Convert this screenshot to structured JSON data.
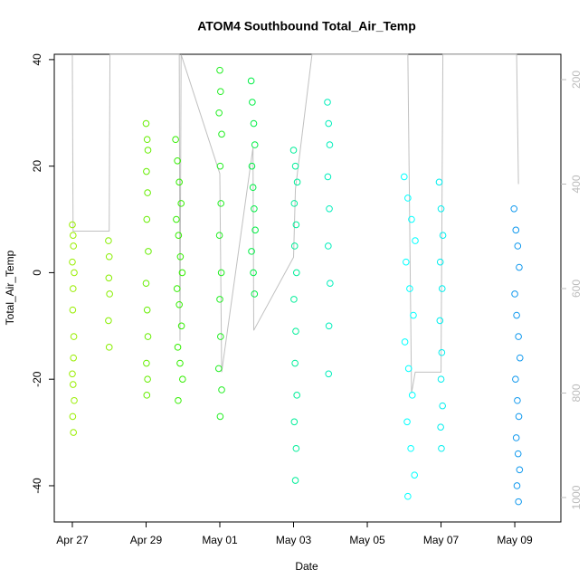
{
  "chart_data": {
    "type": "scatter",
    "title": "ATOM4 Southbound Total_Air_Temp",
    "xlabel": "Date",
    "ylabel": "Total_Air_Temp",
    "xlim": [
      -0.49,
      13.25
    ],
    "ylim": [
      -46.8,
      41
    ],
    "xticks": [
      {
        "value": 0,
        "label": "Apr 27"
      },
      {
        "value": 2,
        "label": "Apr 29"
      },
      {
        "value": 4,
        "label": "May 01"
      },
      {
        "value": 6,
        "label": "May 03"
      },
      {
        "value": 8,
        "label": "May 05"
      },
      {
        "value": 10,
        "label": "May 07"
      },
      {
        "value": 12,
        "label": "May 09"
      }
    ],
    "yticks": [
      -40,
      -20,
      0,
      20,
      40
    ],
    "y2lim": [
      1046.8,
      151.5
    ],
    "y2ticks": [
      200,
      400,
      600,
      800,
      1000
    ],
    "series": [
      {
        "color": "#99ee00",
        "x": [
          0.0,
          0.02,
          0.03,
          0.0,
          0.05,
          0.02,
          0.01,
          0.04,
          0.03,
          0.0,
          0.02,
          0.05,
          0.01,
          0.03
        ],
        "values": [
          9,
          7,
          5,
          2,
          0,
          -3,
          -7,
          -12,
          -16,
          -19,
          -21,
          -24,
          -27,
          -30
        ]
      },
      {
        "color": "#88ee00",
        "x": [
          0.98,
          1.0,
          0.99,
          1.01,
          0.98,
          1.0
        ],
        "values": [
          6,
          3,
          -1,
          -4,
          -9,
          -14
        ]
      },
      {
        "color": "#66ee00",
        "x": [
          2.0,
          2.03,
          2.05,
          2.01,
          2.04,
          2.02,
          2.06,
          2.0,
          2.03,
          2.05,
          2.01,
          2.04,
          2.02
        ],
        "values": [
          28,
          25,
          23,
          19,
          15,
          10,
          4,
          -2,
          -7,
          -12,
          -17,
          -20,
          -23
        ]
      },
      {
        "color": "#33ee00",
        "x": [
          2.8,
          2.85,
          2.9,
          2.95,
          2.82,
          2.88,
          2.93,
          2.98,
          2.84,
          2.9,
          2.96,
          2.86,
          2.92,
          2.99,
          2.87
        ],
        "values": [
          25,
          21,
          17,
          13,
          10,
          7,
          3,
          0,
          -3,
          -6,
          -10,
          -14,
          -17,
          -20,
          -24
        ]
      },
      {
        "color": "#22ee22",
        "x": [
          4.0,
          4.02,
          3.98,
          4.05,
          4.01,
          4.03,
          3.99,
          4.04,
          4.0,
          4.02,
          3.97,
          4.05,
          4.01
        ],
        "values": [
          38,
          34,
          30,
          26,
          20,
          13,
          7,
          0,
          -5,
          -12,
          -18,
          -22,
          -27
        ]
      },
      {
        "color": "#00ee44",
        "x": [
          4.85,
          4.88,
          4.92,
          4.95,
          4.87,
          4.9,
          4.93,
          4.96,
          4.86,
          4.91,
          4.94
        ],
        "values": [
          36,
          32,
          28,
          24,
          20,
          16,
          12,
          8,
          4,
          0,
          -4
        ]
      },
      {
        "color": "#00ee99",
        "x": [
          6.0,
          6.05,
          6.1,
          6.02,
          6.07,
          6.03,
          6.08,
          6.01,
          6.06,
          6.04,
          6.09,
          6.02,
          6.07,
          6.05
        ],
        "values": [
          23,
          20,
          17,
          13,
          9,
          5,
          0,
          -5,
          -11,
          -17,
          -23,
          -28,
          -33,
          -39
        ]
      },
      {
        "color": "#00eebb",
        "x": [
          6.92,
          6.95,
          6.98,
          6.93,
          6.97,
          6.94,
          6.99,
          6.96,
          6.95
        ],
        "values": [
          32,
          28,
          24,
          18,
          12,
          5,
          -2,
          -10,
          -19
        ]
      },
      {
        "color": "#00ffff",
        "x": [
          9.0,
          9.1,
          9.2,
          9.3,
          9.05,
          9.15,
          9.25,
          9.02,
          9.12,
          9.22,
          9.08,
          9.18,
          9.28,
          9.1
        ],
        "values": [
          18,
          14,
          10,
          6,
          2,
          -3,
          -8,
          -13,
          -18,
          -23,
          -28,
          -33,
          -38,
          -42
        ]
      },
      {
        "color": "#00eeee",
        "x": [
          9.95,
          10.0,
          10.05,
          9.98,
          10.03,
          9.97,
          10.02,
          10.0,
          10.04,
          9.99,
          10.01
        ],
        "values": [
          17,
          12,
          7,
          2,
          -3,
          -9,
          -15,
          -20,
          -25,
          -29,
          -33
        ]
      },
      {
        "color": "#1199ee",
        "x": [
          11.98,
          12.03,
          12.08,
          12.12,
          12.0,
          12.05,
          12.1,
          12.14,
          12.02,
          12.07,
          12.11,
          12.04,
          12.09,
          12.13,
          12.06,
          12.1
        ],
        "values": [
          12,
          8,
          5,
          1,
          -4,
          -8,
          -12,
          -16,
          -20,
          -24,
          -27,
          -31,
          -34,
          -37,
          -40,
          -43
        ]
      }
    ],
    "pressure": {
      "color": "#c0c0c0",
      "axis": "y2",
      "x": [
        0.0,
        0.02,
        1.0,
        1.02,
        2.0,
        2.9,
        2.92,
        2.95,
        4.0,
        4.05,
        4.9,
        4.92,
        6.0,
        6.05,
        6.5,
        6.9,
        6.92,
        9.1,
        9.2,
        9.3,
        10.0,
        10.05,
        12.05,
        12.1
      ],
      "values": [
        152,
        490,
        490,
        152,
        152,
        152,
        700,
        152,
        380,
        760,
        330,
        680,
        540,
        410,
        152,
        152,
        152,
        152,
        800,
        760,
        760,
        152,
        152,
        400
      ]
    }
  }
}
